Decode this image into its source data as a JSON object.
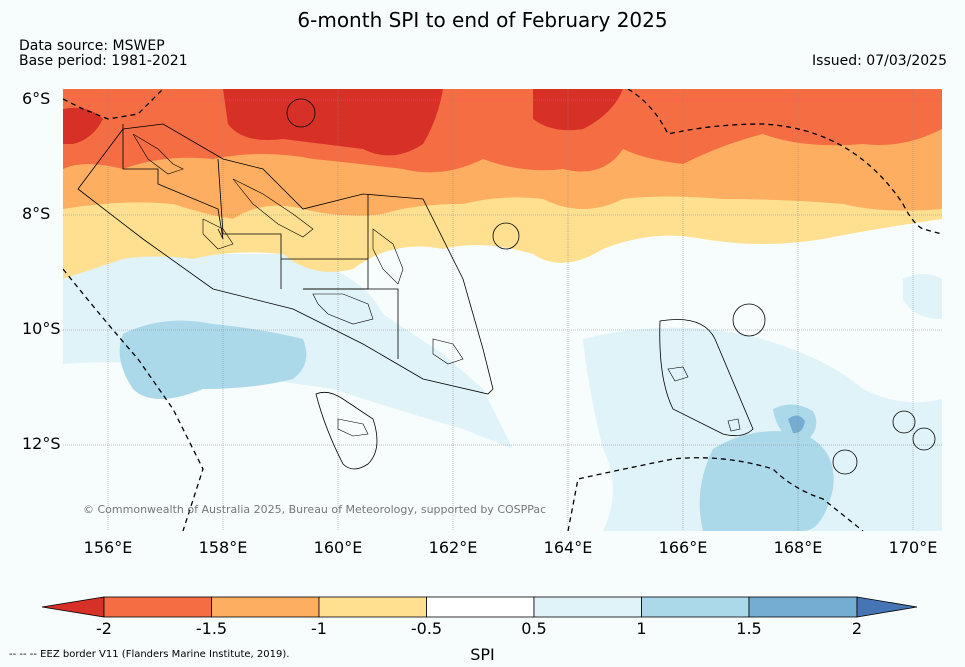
{
  "title": "6-month SPI to end of February 2025",
  "data_source": "Data source: MSWEP",
  "base_period": "Base period: 1981-2021",
  "issued": "Issued: 07/03/2025",
  "lat_labels": [
    "6°S",
    "8°S",
    "10°S",
    "12°S"
  ],
  "lon_labels": [
    "156°E",
    "158°E",
    "160°E",
    "162°E",
    "164°E",
    "166°E",
    "168°E",
    "170°E"
  ],
  "copyright": "© Commonwealth of Australia 2025, Bureau of Meteorology, supported by COSPPac",
  "colorbar": {
    "label": "SPI",
    "ticks": [
      "-2",
      "-1.5",
      "-1",
      "-0.5",
      "0.5",
      "1",
      "1.5",
      "2"
    ],
    "colors": [
      "#d73027",
      "#f46d43",
      "#fdae61",
      "#fee090",
      "#ffffff",
      "#e0f3f8",
      "#abd9e9",
      "#74add1",
      "#4575b4"
    ]
  },
  "footnote": "-- -- -- EEZ border V11 (Flanders Marine Institute, 2019).",
  "colors": {
    "background": "#f7fcfd",
    "very_dry": "#d73027",
    "dry": "#f46d43",
    "moderately_dry": "#fdae61",
    "slightly_dry": "#fee090",
    "slightly_wet": "#e0f3f8",
    "moderately_wet": "#abd9e9",
    "wet": "#74add1"
  }
}
